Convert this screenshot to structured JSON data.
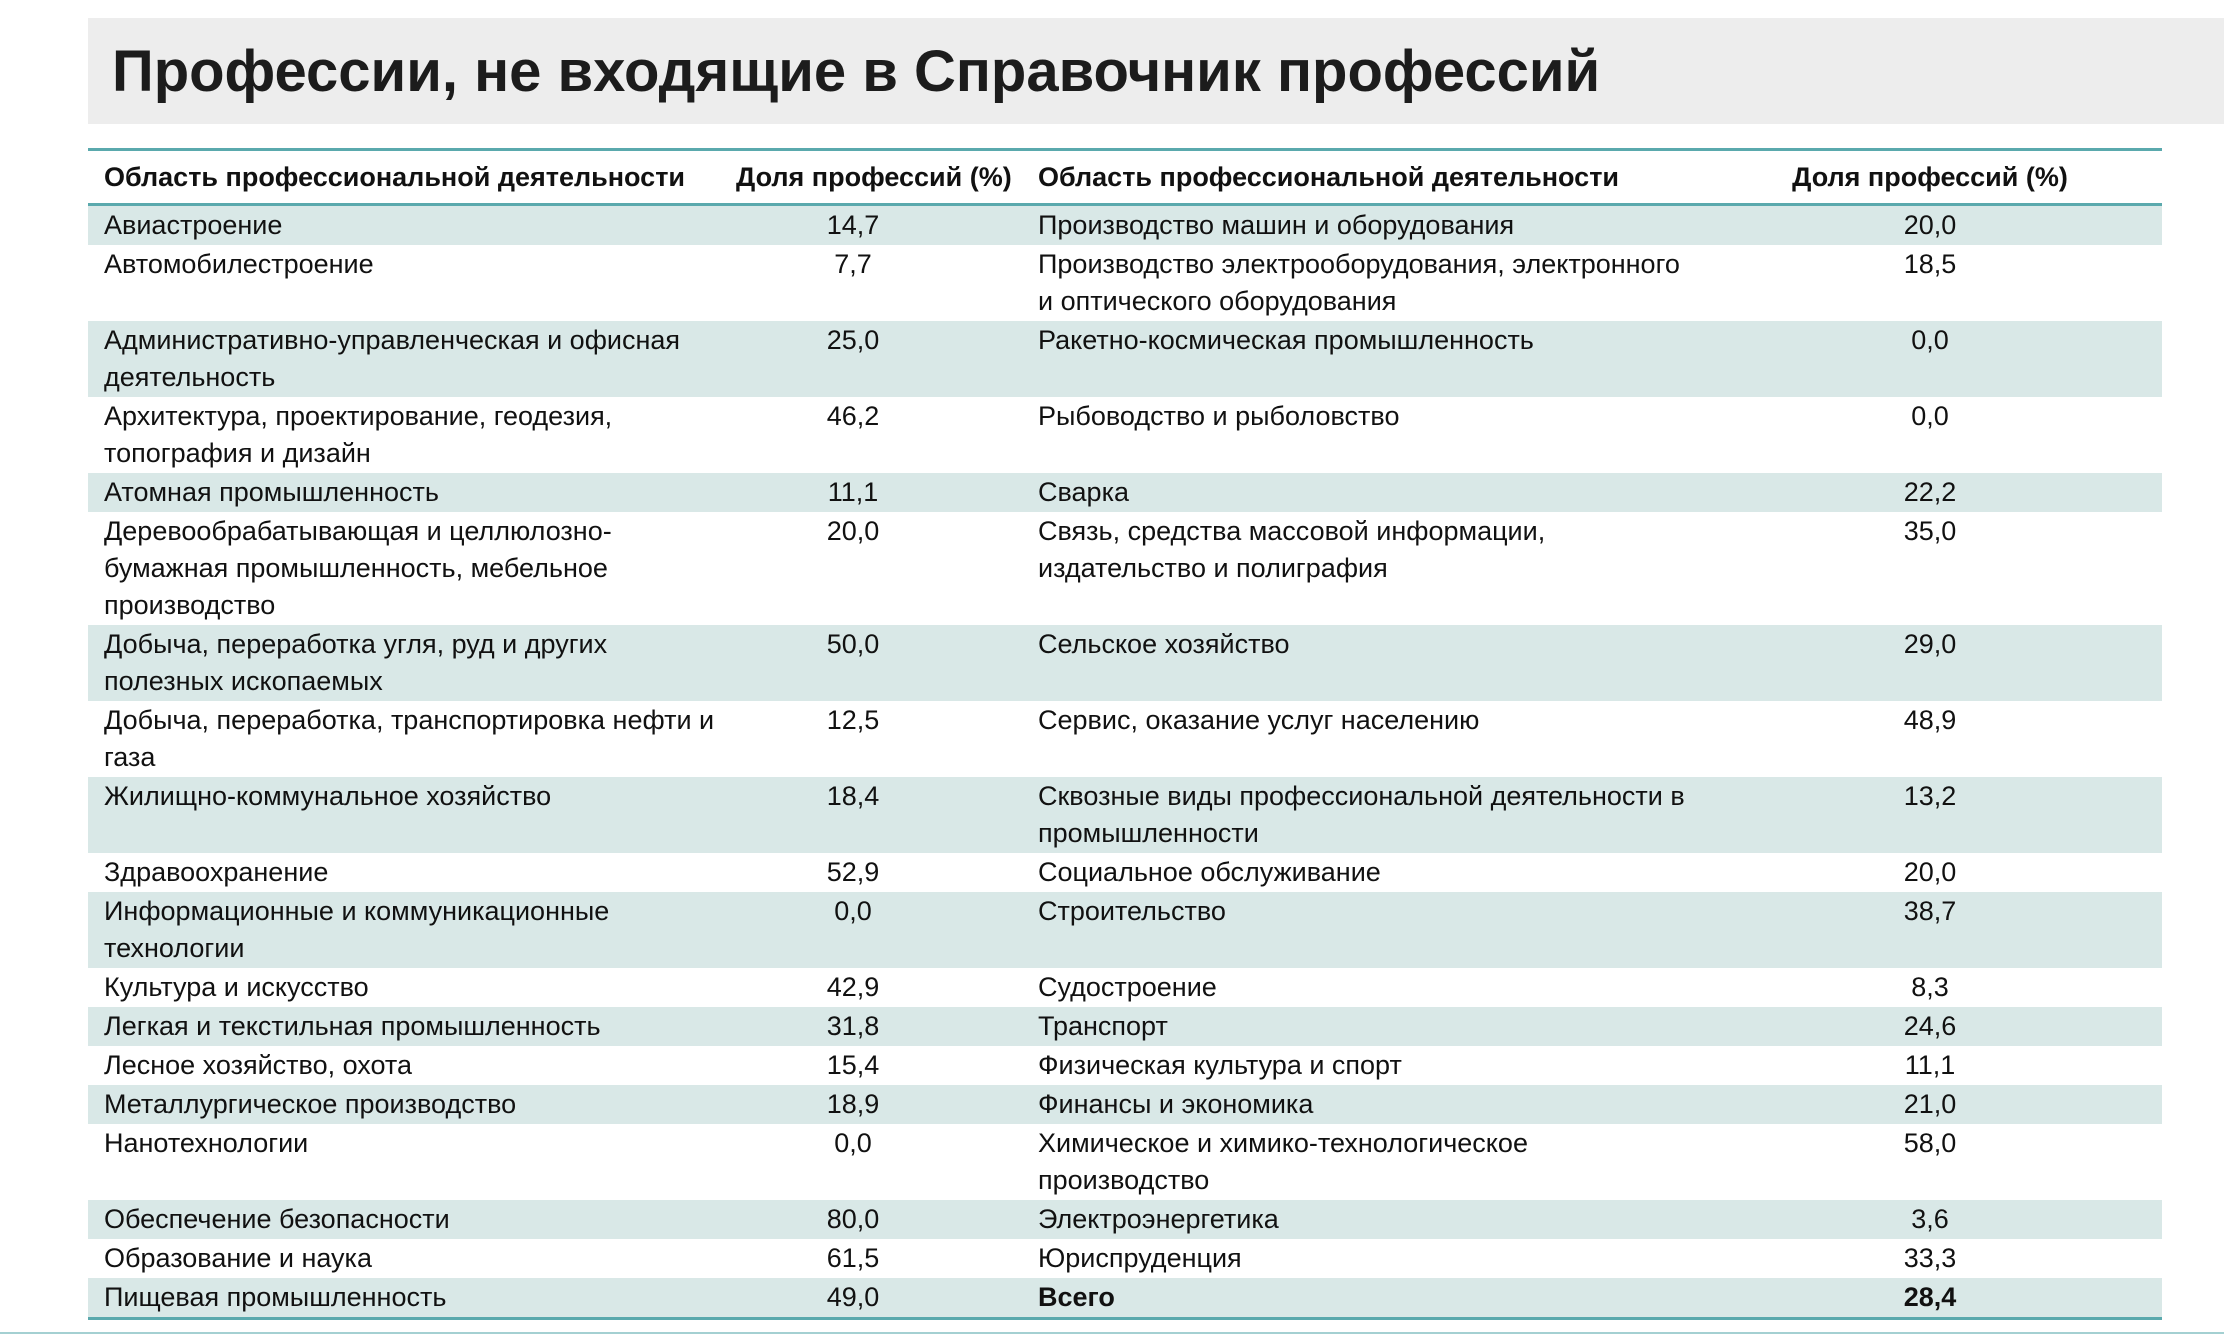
{
  "title": "Профессии, не входящие в Справочник профессий",
  "colors": {
    "accent": "#5aa9ad",
    "stripe": "#d9e8e7",
    "title_band": "#ededed",
    "text": "#111111"
  },
  "table": {
    "headers": [
      "Область профессиональной деятельности",
      "Доля профессий (%)",
      "Область профессиональной деятельности",
      "Доля профессий (%)"
    ],
    "rows": [
      {
        "left_name": "Авиастроение",
        "left_value": "14,7",
        "right_name": "Производство машин и оборудования",
        "right_value": "20,0"
      },
      {
        "left_name": "Автомобилестроение",
        "left_value": "7,7",
        "right_name": "Производство электрооборудования, электронного и оптического оборудования",
        "right_value": "18,5"
      },
      {
        "left_name": "Административно-управленческая и офисная деятельность",
        "left_value": "25,0",
        "right_name": "Ракетно-космическая промышленность",
        "right_value": "0,0"
      },
      {
        "left_name": "Архитектура, проектирование, геодезия, топография и дизайн",
        "left_value": "46,2",
        "right_name": "Рыбоводство и рыболовство",
        "right_value": "0,0"
      },
      {
        "left_name": "Атомная промышленность",
        "left_value": "11,1",
        "right_name": "Сварка",
        "right_value": "22,2"
      },
      {
        "left_name": "Деревообрабатывающая и целлюлозно-бумажная промышленность, мебельное производство",
        "left_value": "20,0",
        "right_name": "Связь, средства массовой информации, издательство и полиграфия",
        "right_value": "35,0"
      },
      {
        "left_name": "Добыча, переработка угля, руд и других полезных ископаемых",
        "left_value": "50,0",
        "right_name": "Сельское хозяйство",
        "right_value": "29,0"
      },
      {
        "left_name": "Добыча, переработка, транспортировка нефти и газа",
        "left_value": "12,5",
        "right_name": "Сервис, оказание услуг населению",
        "right_value": "48,9"
      },
      {
        "left_name": "Жилищно-коммунальное хозяйство",
        "left_value": "18,4",
        "right_name": "Сквозные виды профессиональной деятельности в промышленности",
        "right_value": "13,2"
      },
      {
        "left_name": "Здравоохранение",
        "left_value": "52,9",
        "right_name": "Социальное обслуживание",
        "right_value": "20,0"
      },
      {
        "left_name": "Информационные и коммуникационные технологии",
        "left_value": "0,0",
        "right_name": "Строительство",
        "right_value": "38,7"
      },
      {
        "left_name": "Культура и искусство",
        "left_value": "42,9",
        "right_name": "Судостроение",
        "right_value": "8,3"
      },
      {
        "left_name": "Легкая и текстильная промышленность",
        "left_value": "31,8",
        "right_name": "Транспорт",
        "right_value": "24,6"
      },
      {
        "left_name": "Лесное хозяйство, охота",
        "left_value": "15,4",
        "right_name": "Физическая культура и спорт",
        "right_value": "11,1"
      },
      {
        "left_name": "Металлургическое производство",
        "left_value": "18,9",
        "right_name": "Финансы и экономика",
        "right_value": "21,0"
      },
      {
        "left_name": "Нанотехнологии",
        "left_value": "0,0",
        "right_name": "Химическое и химико-технологическое производство",
        "right_value": "58,0"
      },
      {
        "left_name": "Обеспечение безопасности",
        "left_value": "80,0",
        "right_name": "Электроэнергетика",
        "right_value": "3,6"
      },
      {
        "left_name": "Образование и наука",
        "left_value": "61,5",
        "right_name": "Юриспруденция",
        "right_value": "33,3"
      },
      {
        "left_name": "Пищевая промышленность",
        "left_value": "49,0",
        "right_name": "Всего",
        "right_value": "28,4",
        "bold_right": true
      }
    ]
  }
}
